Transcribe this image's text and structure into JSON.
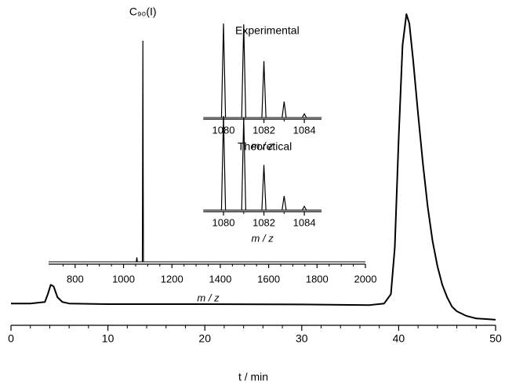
{
  "chart_data": [
    {
      "type": "line",
      "xlabel": "t / min",
      "color": "#000000",
      "xlim": [
        0,
        50
      ],
      "xticks": [
        0,
        10,
        20,
        30,
        40,
        50
      ],
      "xminorticks": [
        2,
        4,
        6,
        8,
        12,
        14,
        16,
        18,
        22,
        24,
        26,
        28,
        32,
        34,
        36,
        38,
        42,
        44,
        46,
        48
      ],
      "ylim": [
        0,
        100
      ],
      "x": [
        0,
        2,
        3.5,
        3.8,
        4.1,
        4.4,
        4.8,
        5.3,
        6,
        10,
        20,
        30,
        37,
        38.5,
        39.2,
        39.6,
        40,
        40.4,
        40.8,
        41.1,
        41.5,
        42,
        42.5,
        43,
        43.5,
        44,
        44.5,
        45,
        45.5,
        46,
        47,
        48,
        49,
        50
      ],
      "values": [
        7,
        7,
        7.5,
        10,
        13,
        12.5,
        9,
        7.5,
        7,
        6.8,
        6.8,
        6.7,
        6.5,
        7,
        10,
        25,
        60,
        90,
        100,
        97,
        85,
        68,
        52,
        38,
        27,
        19,
        13,
        9,
        6,
        4.5,
        3,
        2.2,
        2,
        1.8
      ]
    },
    {
      "type": "stick",
      "annotation": "C₉₀(I)",
      "xlabel": "m / z",
      "color": "#000000",
      "xlim": [
        700,
        2000
      ],
      "xticks": [
        800,
        1000,
        1200,
        1400,
        1600,
        1800,
        2000
      ],
      "xminorticks": [
        750,
        850,
        900,
        950,
        1050,
        1100,
        1150,
        1250,
        1300,
        1350,
        1450,
        1500,
        1550,
        1650,
        1700,
        1750,
        1850,
        1900,
        1950
      ],
      "ylim": [
        0,
        100
      ],
      "x": [
        1055,
        1080
      ],
      "values": [
        2,
        100
      ]
    },
    {
      "type": "stick",
      "title": "Experimental",
      "xlabel": "m / z",
      "color": "#000000",
      "xlim": [
        1079,
        1084.85
      ],
      "xticks": [
        1080,
        1082,
        1084
      ],
      "xminorticks": [
        1081,
        1083
      ],
      "ylim": [
        0,
        100
      ],
      "x": [
        1080,
        1081,
        1082,
        1083,
        1084
      ],
      "values": [
        100,
        99,
        60,
        17,
        4
      ]
    },
    {
      "type": "stick",
      "title": "Theoretical",
      "xlabel": "m / z",
      "color": "#000000",
      "xlim": [
        1079,
        1084.85
      ],
      "xticks": [
        1080,
        1082,
        1084
      ],
      "xminorticks": [
        1081,
        1083
      ],
      "ylim": [
        0,
        100
      ],
      "x": [
        1080,
        1081,
        1082,
        1083,
        1084
      ],
      "values": [
        100,
        98,
        48,
        15,
        4
      ]
    }
  ]
}
